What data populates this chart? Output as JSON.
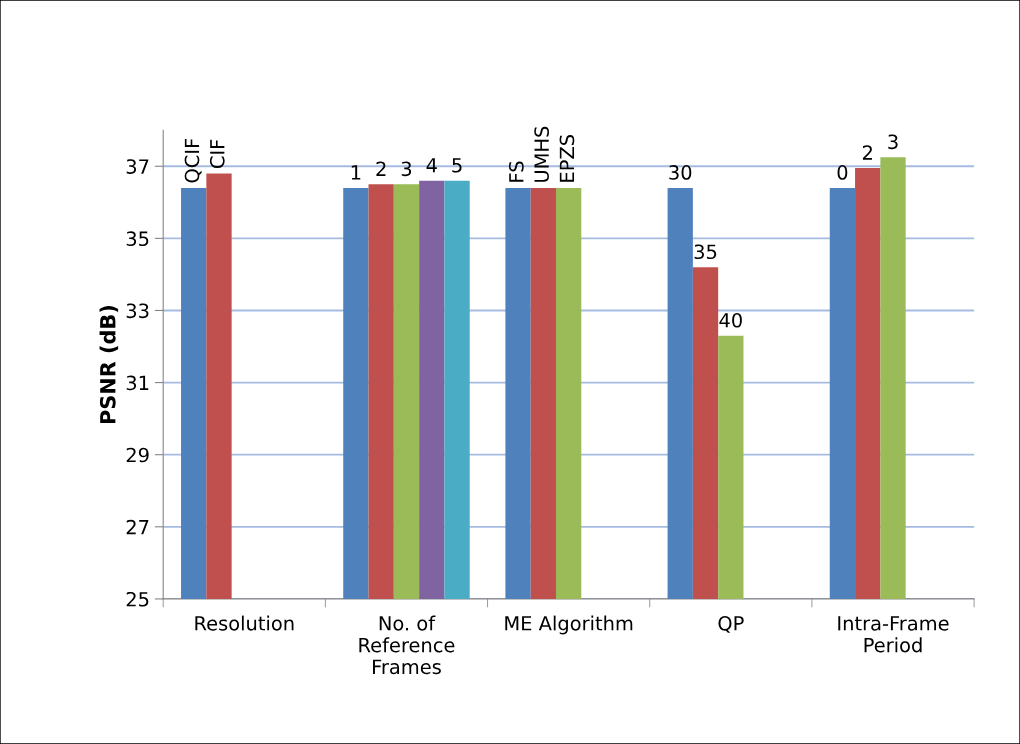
{
  "chart_data": {
    "type": "bar",
    "ylabel": "PSNR (dB)",
    "categories": [
      "Resolution",
      "No. of\nReference\nFrames",
      "ME Algorithm",
      "QP",
      "Intra-Frame\nPeriod"
    ],
    "series": [
      {
        "name": "QCIF",
        "color": "#4f81bd",
        "values": [
          36.4,
          null,
          null,
          null,
          null
        ]
      },
      {
        "name": "CIF",
        "color": "#c0504d",
        "values": [
          36.8,
          null,
          null,
          null,
          null
        ]
      },
      {
        "name": "1",
        "color": "#4f81bd",
        "values": [
          null,
          36.4,
          null,
          null,
          null
        ]
      },
      {
        "name": "2",
        "color": "#c0504d",
        "values": [
          null,
          36.5,
          null,
          null,
          null
        ]
      },
      {
        "name": "3",
        "color": "#9bbb59",
        "values": [
          null,
          36.5,
          null,
          null,
          null
        ]
      },
      {
        "name": "4",
        "color": "#8064a2",
        "values": [
          null,
          36.6,
          null,
          null,
          null
        ]
      },
      {
        "name": "5",
        "color": "#4bacc6",
        "values": [
          null,
          36.6,
          null,
          null,
          null
        ]
      },
      {
        "name": "FS",
        "color": "#4f81bd",
        "values": [
          null,
          null,
          36.4,
          null,
          null
        ]
      },
      {
        "name": "UMHS",
        "color": "#c0504d",
        "values": [
          null,
          null,
          36.4,
          null,
          null
        ]
      },
      {
        "name": "EPZS",
        "color": "#9bbb59",
        "values": [
          null,
          null,
          36.4,
          null,
          null
        ]
      },
      {
        "name": "30",
        "color": "#4f81bd",
        "values": [
          null,
          null,
          null,
          36.4,
          null
        ]
      },
      {
        "name": "35",
        "color": "#c0504d",
        "values": [
          null,
          null,
          null,
          34.2,
          null
        ]
      },
      {
        "name": "40",
        "color": "#9bbb59",
        "values": [
          null,
          null,
          null,
          32.3,
          null
        ]
      },
      {
        "name": "0",
        "color": "#4f81bd",
        "values": [
          null,
          null,
          null,
          null,
          36.4
        ]
      },
      {
        "name": "2",
        "color": "#c0504d",
        "values": [
          null,
          null,
          null,
          null,
          36.95
        ]
      },
      {
        "name": "3",
        "color": "#9bbb59",
        "values": [
          null,
          null,
          null,
          null,
          37.25
        ]
      }
    ],
    "ylim": [
      25,
      38
    ],
    "yticks": [
      25,
      27,
      29,
      31,
      33,
      35,
      37
    ],
    "grid": "y"
  }
}
